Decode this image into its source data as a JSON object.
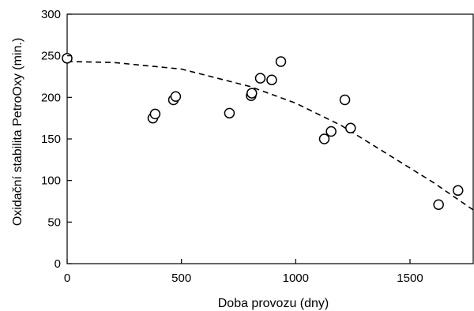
{
  "chart_data": {
    "type": "scatter",
    "xlabel": "Doba provozu (dny)",
    "ylabel": "Oxidační stabilita PetroOxy (min.)",
    "xlim": [
      0,
      1780
    ],
    "ylim": [
      0,
      300
    ],
    "xticks": [
      0,
      500,
      1000,
      1500
    ],
    "yticks": [
      0,
      50,
      100,
      150,
      200,
      250,
      300
    ],
    "grid": false,
    "series": [
      {
        "marker": "open-circle",
        "points": [
          {
            "x": 0,
            "y": 247
          },
          {
            "x": 375,
            "y": 175
          },
          {
            "x": 385,
            "y": 180
          },
          {
            "x": 465,
            "y": 197
          },
          {
            "x": 475,
            "y": 201
          },
          {
            "x": 710,
            "y": 181
          },
          {
            "x": 805,
            "y": 202
          },
          {
            "x": 808,
            "y": 205
          },
          {
            "x": 845,
            "y": 223
          },
          {
            "x": 895,
            "y": 221
          },
          {
            "x": 935,
            "y": 243
          },
          {
            "x": 1125,
            "y": 150
          },
          {
            "x": 1155,
            "y": 159
          },
          {
            "x": 1215,
            "y": 197
          },
          {
            "x": 1240,
            "y": 163
          },
          {
            "x": 1625,
            "y": 71
          },
          {
            "x": 1710,
            "y": 88
          }
        ]
      }
    ],
    "trendline": {
      "style": "dashed",
      "kind": "quadratic",
      "points": [
        {
          "x": 0,
          "y": 243
        },
        {
          "x": 200,
          "y": 242
        },
        {
          "x": 500,
          "y": 234
        },
        {
          "x": 800,
          "y": 213
        },
        {
          "x": 1000,
          "y": 193
        },
        {
          "x": 1200,
          "y": 166
        },
        {
          "x": 1400,
          "y": 132
        },
        {
          "x": 1600,
          "y": 98
        },
        {
          "x": 1780,
          "y": 64
        }
      ]
    }
  }
}
